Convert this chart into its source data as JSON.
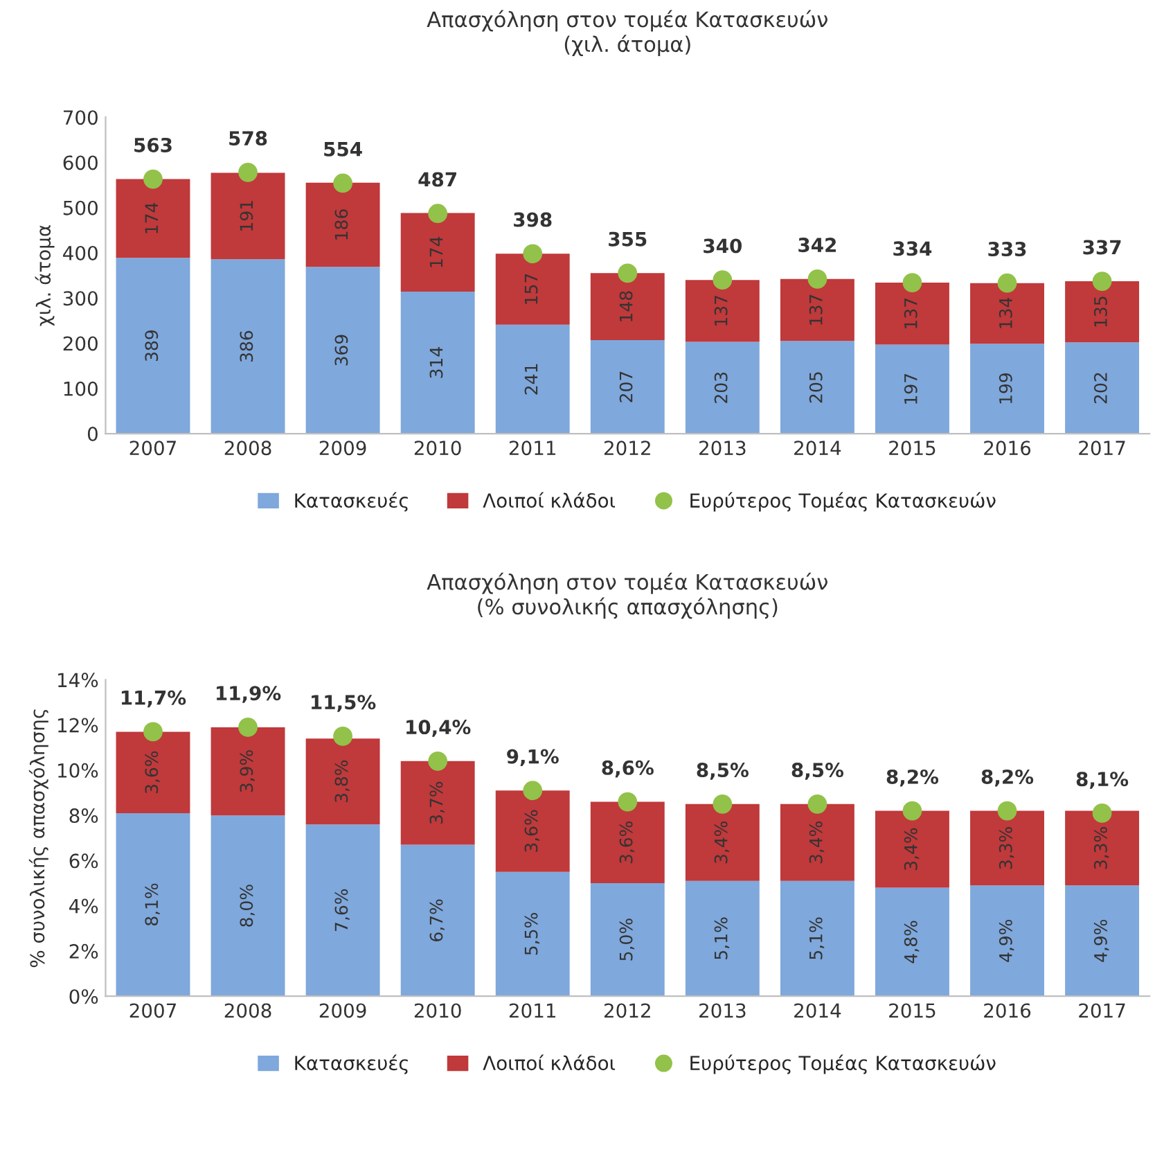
{
  "chart_data": [
    {
      "type": "bar",
      "title": "Απασχόληση στον τομέα Κατασκευών",
      "subtitle": "(χιλ. άτομα)",
      "ylabel": "χιλ. άτομα",
      "categories": [
        "2007",
        "2008",
        "2009",
        "2010",
        "2011",
        "2012",
        "2013",
        "2014",
        "2015",
        "2016",
        "2017"
      ],
      "stacked": true,
      "ylim": [
        0,
        700
      ],
      "yticks": [
        0,
        100,
        200,
        300,
        400,
        500,
        600,
        700
      ],
      "grid": false,
      "legend": "bottom",
      "data_labels": true,
      "series": [
        {
          "name": "Κατασκευές",
          "color": "#7fa8dc",
          "values": [
            389,
            386,
            369,
            314,
            241,
            207,
            203,
            205,
            197,
            199,
            202
          ]
        },
        {
          "name": "Λοιποί κλάδοι",
          "color": "#c0393b",
          "values": [
            174,
            191,
            186,
            174,
            157,
            148,
            137,
            137,
            137,
            134,
            135
          ]
        },
        {
          "name": "Ευρύτερος Τομέας Κατασκευών",
          "type": "scatter",
          "color": "#92c24a",
          "values": [
            563,
            578,
            554,
            487,
            398,
            355,
            340,
            342,
            334,
            333,
            337
          ]
        }
      ]
    },
    {
      "type": "bar",
      "title": "Απασχόληση στον τομέα Κατασκευών",
      "subtitle": "(% συνολικής απασχόλησης)",
      "ylabel": "% συνολικής απασχόλησης",
      "categories": [
        "2007",
        "2008",
        "2009",
        "2010",
        "2011",
        "2012",
        "2013",
        "2014",
        "2015",
        "2016",
        "2017"
      ],
      "stacked": true,
      "ylim": [
        0,
        14
      ],
      "yticks": [
        {
          "value": 0,
          "label": "0%"
        },
        {
          "value": 2,
          "label": "2%"
        },
        {
          "value": 4,
          "label": "4%"
        },
        {
          "value": 6,
          "label": "6%"
        },
        {
          "value": 8,
          "label": "8%"
        },
        {
          "value": 10,
          "label": "10%"
        },
        {
          "value": 12,
          "label": "12%"
        },
        {
          "value": 14,
          "label": "14%"
        }
      ],
      "grid": false,
      "legend": "bottom",
      "series": [
        {
          "name": "Κατασκευές",
          "color": "#7fa8dc",
          "values": [
            8.1,
            8.0,
            7.6,
            6.7,
            5.5,
            5.0,
            5.1,
            5.1,
            4.8,
            4.9,
            4.9
          ],
          "value_labels": [
            "8,1%",
            "8,0%",
            "7,6%",
            "6,7%",
            "5,5%",
            "5,0%",
            "5,1%",
            "5,1%",
            "4,8%",
            "4,9%",
            "4,9%"
          ]
        },
        {
          "name": "Λοιποί κλάδοι",
          "color": "#c0393b",
          "values": [
            3.6,
            3.9,
            3.8,
            3.7,
            3.6,
            3.6,
            3.4,
            3.4,
            3.4,
            3.3,
            3.3
          ],
          "value_labels": [
            "3,6%",
            "3,9%",
            "3,8%",
            "3,7%",
            "3,6%",
            "3,6%",
            "3,4%",
            "3,4%",
            "3,4%",
            "3,3%",
            "3,3%"
          ]
        },
        {
          "name": "Ευρύτερος Τομέας Κατασκευών",
          "type": "scatter",
          "color": "#92c24a",
          "values": [
            11.7,
            11.9,
            11.5,
            10.4,
            9.1,
            8.6,
            8.5,
            8.5,
            8.2,
            8.2,
            8.1
          ],
          "value_labels": [
            "11,7%",
            "11,9%",
            "11,5%",
            "10,4%",
            "9,1%",
            "8,6%",
            "8,5%",
            "8,5%",
            "8,2%",
            "8,2%",
            "8,1%"
          ]
        }
      ]
    }
  ]
}
